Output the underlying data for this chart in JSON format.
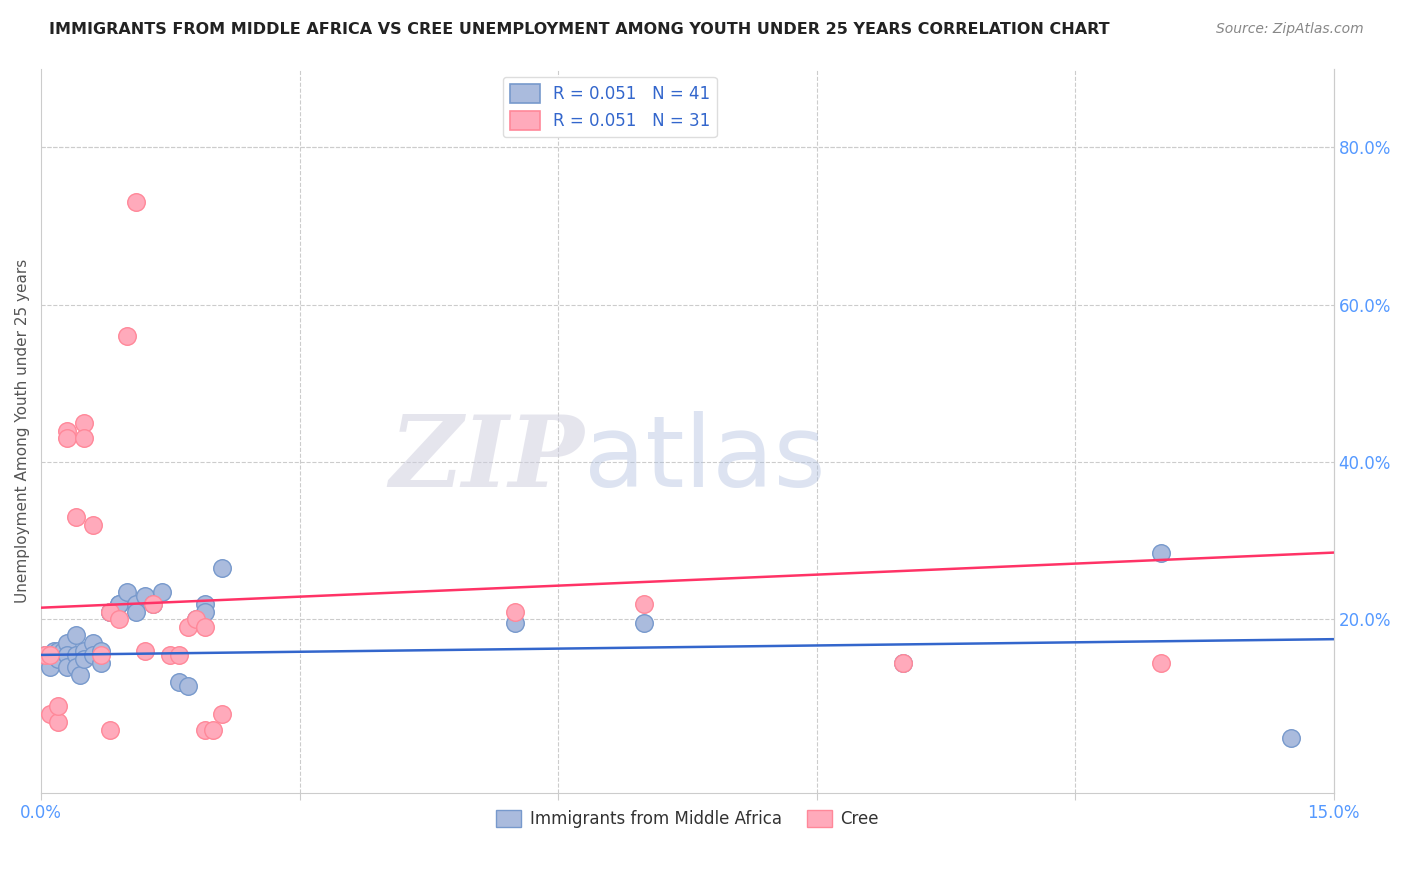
{
  "title": "IMMIGRANTS FROM MIDDLE AFRICA VS CREE UNEMPLOYMENT AMONG YOUTH UNDER 25 YEARS CORRELATION CHART",
  "source": "Source: ZipAtlas.com",
  "ylabel": "Unemployment Among Youth under 25 years",
  "xlim": [
    0.0,
    0.15
  ],
  "ylim": [
    -0.02,
    0.9
  ],
  "xticks": [
    0.0,
    0.03,
    0.06,
    0.09,
    0.12,
    0.15
  ],
  "xticklabels": [
    "0.0%",
    "",
    "",
    "",
    "",
    "15.0%"
  ],
  "yticks_right": [
    0.0,
    0.2,
    0.4,
    0.6,
    0.8
  ],
  "yticklabels_right": [
    "",
    "20.0%",
    "40.0%",
    "60.0%",
    "80.0%"
  ],
  "blue_color": "#AABBDD",
  "pink_color": "#FFAABB",
  "blue_edge_color": "#7799CC",
  "pink_edge_color": "#FF8899",
  "trend_blue": "#3366CC",
  "trend_pink": "#FF3366",
  "legend_r_blue": "R = 0.051",
  "legend_n_blue": "N = 41",
  "legend_r_pink": "R = 0.051",
  "legend_n_pink": "N = 31",
  "blue_scatter_x": [
    0.0005,
    0.001,
    0.001,
    0.0015,
    0.002,
    0.002,
    0.0025,
    0.003,
    0.003,
    0.003,
    0.004,
    0.004,
    0.004,
    0.0045,
    0.005,
    0.005,
    0.006,
    0.006,
    0.007,
    0.007,
    0.008,
    0.008,
    0.009,
    0.009,
    0.01,
    0.011,
    0.011,
    0.012,
    0.013,
    0.014,
    0.016,
    0.017,
    0.018,
    0.019,
    0.019,
    0.021,
    0.055,
    0.07,
    0.1,
    0.13,
    0.145
  ],
  "blue_scatter_y": [
    0.155,
    0.155,
    0.14,
    0.16,
    0.16,
    0.15,
    0.16,
    0.17,
    0.155,
    0.14,
    0.155,
    0.14,
    0.18,
    0.13,
    0.16,
    0.15,
    0.17,
    0.155,
    0.16,
    0.145,
    0.21,
    0.21,
    0.22,
    0.22,
    0.235,
    0.22,
    0.21,
    0.23,
    0.22,
    0.235,
    0.12,
    0.115,
    0.2,
    0.22,
    0.21,
    0.265,
    0.195,
    0.195,
    0.145,
    0.285,
    0.05
  ],
  "pink_scatter_x": [
    0.0005,
    0.001,
    0.001,
    0.002,
    0.002,
    0.003,
    0.003,
    0.004,
    0.005,
    0.005,
    0.006,
    0.007,
    0.008,
    0.008,
    0.009,
    0.01,
    0.011,
    0.012,
    0.013,
    0.015,
    0.016,
    0.017,
    0.018,
    0.019,
    0.019,
    0.02,
    0.021,
    0.055,
    0.07,
    0.1,
    0.13
  ],
  "pink_scatter_y": [
    0.155,
    0.155,
    0.08,
    0.07,
    0.09,
    0.44,
    0.43,
    0.33,
    0.45,
    0.43,
    0.32,
    0.155,
    0.21,
    0.06,
    0.2,
    0.56,
    0.73,
    0.16,
    0.22,
    0.155,
    0.155,
    0.19,
    0.2,
    0.19,
    0.06,
    0.06,
    0.08,
    0.21,
    0.22,
    0.145,
    0.145
  ],
  "blue_trend_x": [
    0.0,
    0.15
  ],
  "blue_trend_y": [
    0.155,
    0.175
  ],
  "pink_trend_x": [
    0.0,
    0.15
  ],
  "pink_trend_y": [
    0.215,
    0.285
  ],
  "watermark_zip": "ZIP",
  "watermark_atlas": "atlas",
  "background_color": "#FFFFFF",
  "grid_color": "#CCCCCC",
  "title_color": "#222222",
  "axis_label_color": "#555555",
  "right_axis_color": "#5599FF",
  "tick_label_color": "#5599FF"
}
